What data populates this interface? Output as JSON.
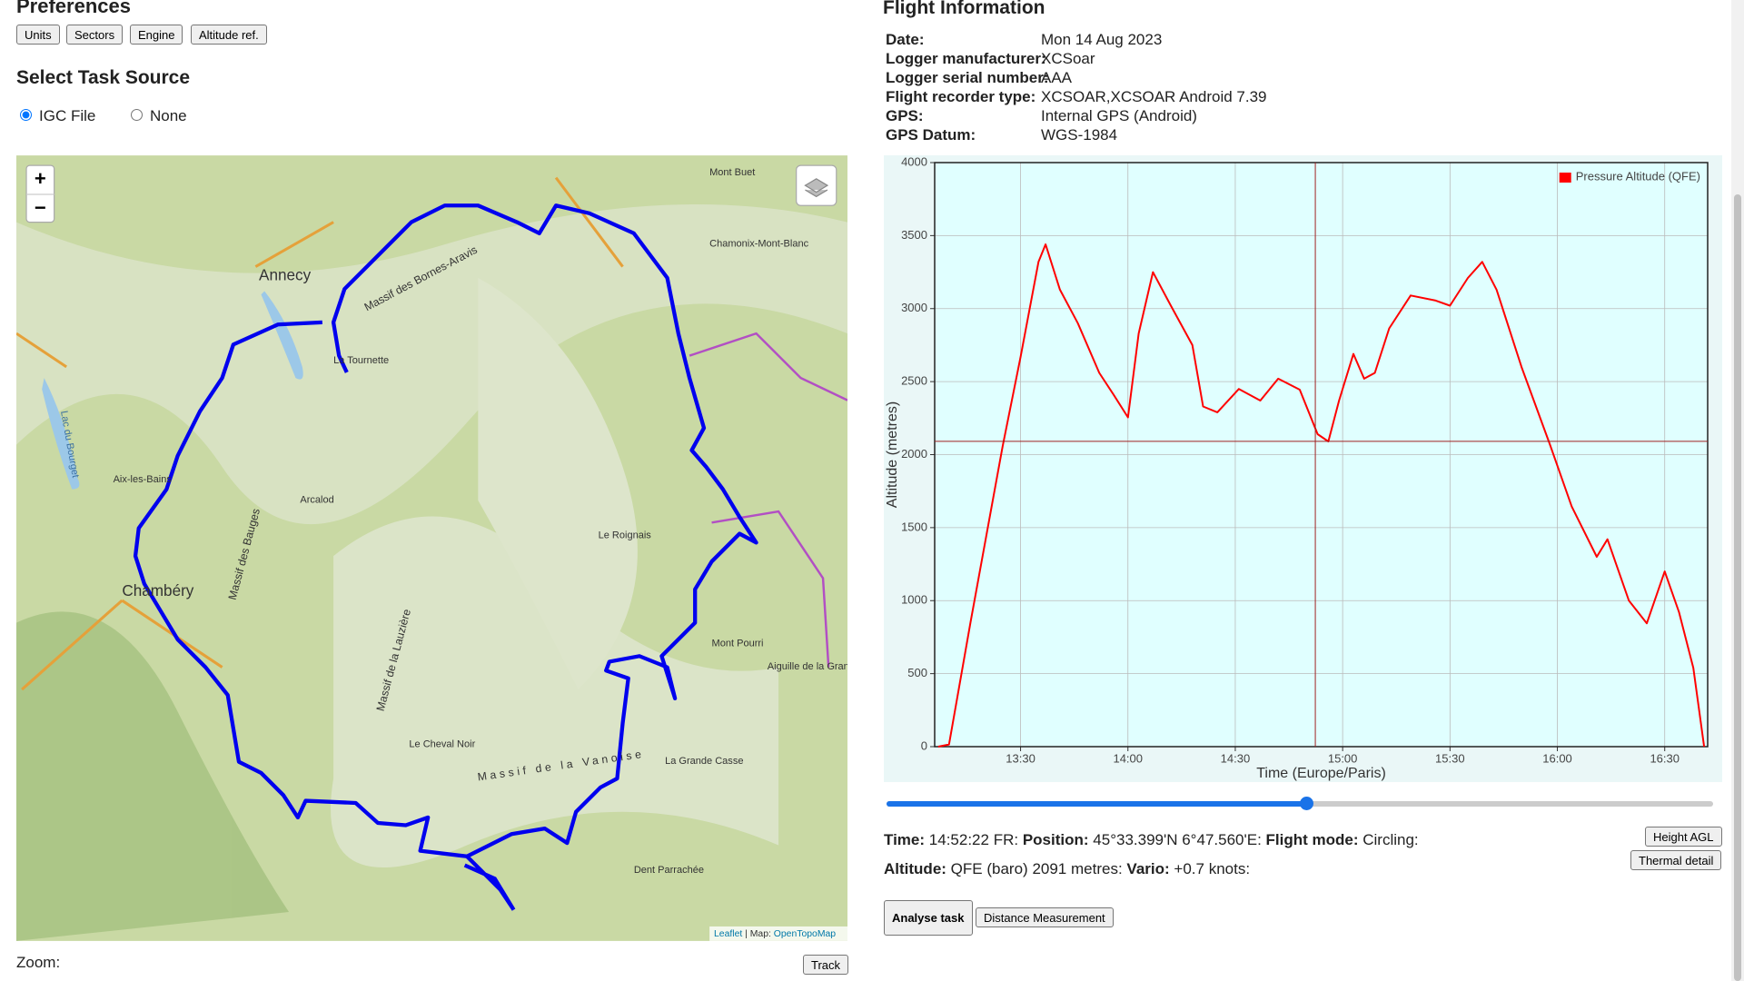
{
  "preferences": {
    "title": "Preferences",
    "buttons": [
      "Units",
      "Sectors",
      "Engine",
      "Altitude ref."
    ]
  },
  "task_source": {
    "title": "Select Task Source",
    "options": [
      "IGC File",
      "None"
    ]
  },
  "map": {
    "labels": [
      "Annecy",
      "Chambéry",
      "Aix-les-Bains",
      "Mont Buet",
      "Chamonix-Mont-Blanc",
      "La Tournette",
      "Arcalod",
      "Le Roignais",
      "Mont Pourri",
      "Aiguille de la Grand",
      "Le Cheval Noir",
      "La Grande Casse",
      "Dent Parrachée",
      "Massif des Bornes-Aravis",
      "Massif de la Vanoise",
      "Lac du Bourget",
      "Massif de la Lauzière",
      "Massif des Bauges"
    ],
    "attribution": [
      "Leaflet",
      "| Map:",
      "OpenTopoMap"
    ],
    "zoom_in": "+",
    "zoom_out": "−"
  },
  "zoom": {
    "label": "Zoom:",
    "button": "Track"
  },
  "info": {
    "title": "Flight Information",
    "rows": [
      {
        "label": "Date:",
        "value": "Mon 14 Aug 2023"
      },
      {
        "label": "Logger manufacturer:",
        "value": "XCSoar"
      },
      {
        "label": "Logger serial number:",
        "value": "AAA"
      },
      {
        "label": "Flight recorder type:",
        "value": "XCSOAR,XCSOAR Android 7.39"
      },
      {
        "label": "GPS:",
        "value": "Internal GPS (Android)"
      },
      {
        "label": "GPS Datum:",
        "value": "WGS-1984"
      }
    ]
  },
  "chart_data": {
    "type": "line",
    "x_label": "Time (Europe/Paris)",
    "y_label": "Altitude (metres)",
    "x": [
      "13:07",
      "13:10",
      "13:16",
      "13:25",
      "13:30",
      "13:35",
      "13:37",
      "13:41",
      "13:46",
      "13:52",
      "13:56",
      "14:00",
      "14:03",
      "14:07",
      "14:12",
      "14:18",
      "14:21",
      "14:25",
      "14:31",
      "14:37",
      "14:42",
      "14:48",
      "14:53",
      "14:56",
      "14:59",
      "15:03",
      "15:06",
      "15:09",
      "15:13",
      "15:19",
      "15:26",
      "15:30",
      "15:35",
      "15:39",
      "15:43",
      "15:50",
      "15:58",
      "16:04",
      "16:11",
      "16:14",
      "16:20",
      "16:25",
      "16:30",
      "16:34",
      "16:38",
      "16:41"
    ],
    "series": [
      {
        "name": "Pressure Altitude (QFE)",
        "color": "#ff0000",
        "values": [
          0,
          15,
          850,
          2060,
          2670,
          3320,
          3440,
          3130,
          2900,
          2560,
          2410,
          2255,
          2830,
          3250,
          3020,
          2750,
          2330,
          2290,
          2450,
          2370,
          2520,
          2445,
          2140,
          2090,
          2370,
          2690,
          2520,
          2560,
          2865,
          3090,
          3055,
          3020,
          3210,
          3320,
          3130,
          2600,
          2065,
          1645,
          1300,
          1420,
          1000,
          845,
          1200,
          920,
          540,
          0
        ]
      }
    ],
    "xlim": [
      "13:06",
      "16:42"
    ],
    "xticks": [
      "13:30",
      "14:00",
      "14:30",
      "15:00",
      "15:30",
      "16:00",
      "16:30"
    ],
    "ylim": [
      0,
      4000
    ],
    "yticks": [
      0,
      500,
      1000,
      1500,
      2000,
      2500,
      3000,
      3500,
      4000
    ],
    "grid": true,
    "legend": "top-right",
    "background": "#e0ffff"
  },
  "status": {
    "time_label": "Time:",
    "time": "14:52:22",
    "fr": "FR:",
    "position_label": "Position:",
    "position": "45°33.399'N 6°47.560'E:",
    "mode_label": "Flight mode:",
    "mode": "Circling:",
    "altitude_label": "Altitude:",
    "altitude_prefix": "QFE (baro)",
    "altitude": 2091,
    "altitude_unit": "metres:",
    "vario_label": "Vario:",
    "vario": "+0.7 knots:"
  },
  "buttons": {
    "height_agl": "Height AGL",
    "thermal_detail": "Thermal detail",
    "analyse": "Analyse task",
    "distance": "Distance Measurement"
  }
}
